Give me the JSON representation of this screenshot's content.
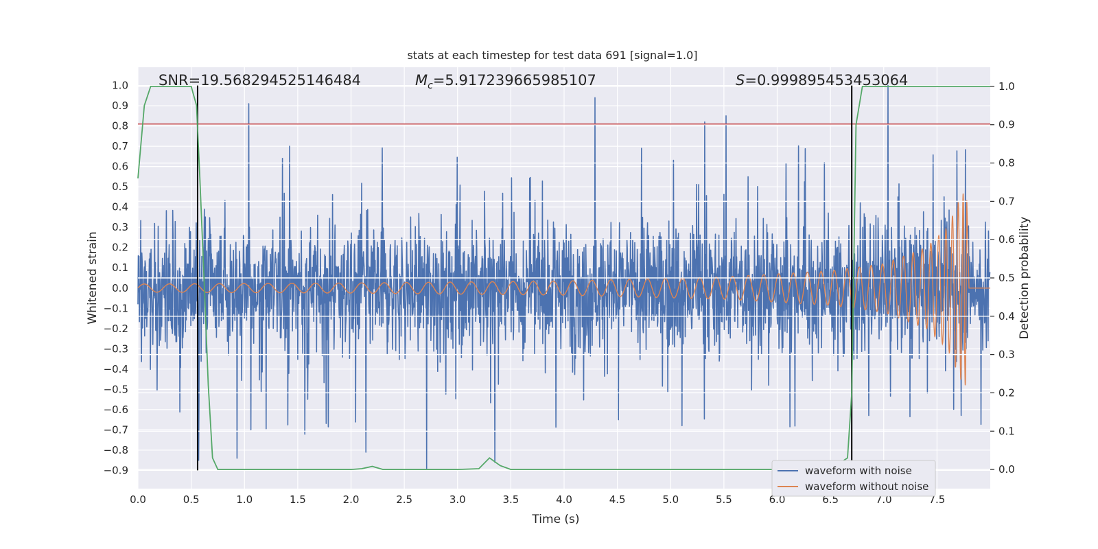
{
  "chart_data": {
    "type": "line",
    "title": "stats at each timestep for test data 691 [signal=1.0]",
    "xlabel": "Time (s)",
    "ylabel": "Whitened strain",
    "y2label": "Detection probability",
    "xlim": [
      0.0,
      8.0
    ],
    "ylim": [
      -0.99,
      1.09
    ],
    "y2lim": [
      -0.05,
      1.05
    ],
    "x_ticks": [
      0.0,
      0.5,
      1.0,
      1.5,
      2.0,
      2.5,
      3.0,
      3.5,
      4.0,
      4.5,
      5.0,
      5.5,
      6.0,
      6.5,
      7.0,
      7.5
    ],
    "x_tick_labels": [
      "0.0",
      "0.5",
      "1.0",
      "1.5",
      "2.0",
      "2.5",
      "3.0",
      "3.5",
      "4.0",
      "4.5",
      "5.0",
      "5.5",
      "6.0",
      "6.5",
      "7.0",
      "7.5"
    ],
    "y_ticks": [
      -0.9,
      -0.8,
      -0.7,
      -0.6,
      -0.5,
      -0.4,
      -0.3,
      -0.2,
      -0.1,
      0.0,
      0.1,
      0.2,
      0.3,
      0.4,
      0.5,
      0.6,
      0.7,
      0.8,
      0.9,
      1.0
    ],
    "y_tick_labels": [
      "−0.9",
      "−0.8",
      "−0.7",
      "−0.6",
      "−0.5",
      "−0.4",
      "−0.3",
      "−0.2",
      "−0.1",
      "0.0",
      "0.1",
      "0.2",
      "0.3",
      "0.4",
      "0.5",
      "0.6",
      "0.7",
      "0.8",
      "0.9",
      "1.0"
    ],
    "y2_ticks": [
      0.0,
      0.1,
      0.2,
      0.3,
      0.4,
      0.5,
      0.6,
      0.7,
      0.8,
      0.9,
      1.0
    ],
    "y2_tick_labels": [
      "0.0",
      "0.1",
      "0.2",
      "0.3",
      "0.4",
      "0.5",
      "0.6",
      "0.7",
      "0.8",
      "0.9",
      "1.0"
    ],
    "grid": true,
    "legend_position": "bottom-right",
    "annotations": {
      "snr": "SNR=19.568294525146484",
      "mc_symbol": "M",
      "mc_sub": "c",
      "mc_value": "=5.917239665985107",
      "s_symbol": "S",
      "s_value": "=0.999895453453064"
    },
    "threshold_y": 0.81,
    "vertical_lines_x": [
      0.56,
      6.7
    ],
    "series": [
      {
        "name": "waveform with noise",
        "color": "#4c72b0",
        "description": "noisy whitened strain, roughly in [-0.4, 0.45] with spikes to ~0.91 and -0.89",
        "spikes": [
          [
            1.04,
            0.91
          ],
          [
            4.29,
            0.94
          ],
          [
            7.04,
            1.0
          ],
          [
            2.71,
            -0.89
          ],
          [
            0.93,
            -0.84
          ],
          [
            2.14,
            -0.81
          ],
          [
            0.57,
            -0.85
          ],
          [
            3.35,
            -0.86
          ],
          [
            5.32,
            0.82
          ],
          [
            5.52,
            0.85
          ]
        ]
      },
      {
        "name": "waveform without noise",
        "color": "#dd8452",
        "description": "chirp signal, amplitude grows from ~0.02 to ~0.49 and ends at 7.78 s",
        "amplitude_points": [
          [
            0.0,
            0.02
          ],
          [
            2.0,
            0.025
          ],
          [
            4.0,
            0.035
          ],
          [
            5.5,
            0.055
          ],
          [
            6.5,
            0.085
          ],
          [
            7.0,
            0.12
          ],
          [
            7.4,
            0.2
          ],
          [
            7.6,
            0.3
          ],
          [
            7.72,
            0.45
          ],
          [
            7.78,
            0.49
          ]
        ],
        "merger_time": 7.78
      },
      {
        "name": "detection probability",
        "axis": "right",
        "color": "#55a868",
        "x": [
          0.0,
          0.06,
          0.12,
          0.2,
          0.3,
          0.4,
          0.5,
          0.55,
          0.58,
          0.62,
          0.66,
          0.7,
          0.75,
          1.0,
          2.0,
          2.1,
          2.2,
          2.3,
          2.4,
          3.0,
          3.2,
          3.3,
          3.4,
          3.5,
          4.0,
          5.0,
          6.0,
          6.5,
          6.66,
          6.7,
          6.74,
          6.8,
          7.0,
          8.0
        ],
        "y": [
          0.76,
          0.95,
          1.0,
          1.0,
          1.0,
          1.0,
          1.0,
          0.95,
          0.77,
          0.5,
          0.22,
          0.03,
          0.0,
          0.0,
          0.0,
          0.002,
          0.008,
          0.0,
          0.0,
          0.0,
          0.002,
          0.03,
          0.01,
          0.0,
          0.0,
          0.0,
          0.0,
          0.0,
          0.03,
          0.2,
          0.9,
          1.0,
          1.0,
          1.0
        ]
      }
    ],
    "colors": {
      "plot_bg": "#eaeaf2",
      "grid": "#ffffff",
      "noise": "#4c72b0",
      "clean": "#dd8452",
      "prob": "#55a868",
      "threshold": "#c44e52",
      "vline": "#000000"
    }
  }
}
